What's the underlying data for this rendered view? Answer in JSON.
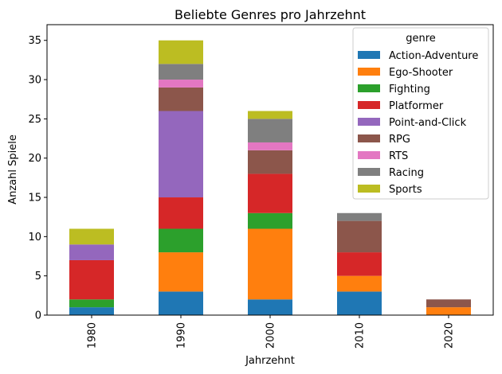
{
  "chart_data": {
    "type": "bar",
    "stacked": true,
    "title": "Beliebte Genres pro Jahrzehnt",
    "xlabel": "Jahrzehnt",
    "ylabel": "Anzahl Spiele",
    "categories": [
      "1980",
      "1990",
      "2000",
      "2010",
      "2020"
    ],
    "ylim": [
      0,
      37
    ],
    "yticks": [
      0,
      5,
      10,
      15,
      20,
      25,
      30,
      35
    ],
    "grid": false,
    "legend": {
      "title": "genre",
      "placement": "top-right"
    },
    "series": [
      {
        "name": "Action-Adventure",
        "color": "#1f77b4",
        "values": [
          1,
          3,
          2,
          3,
          0
        ]
      },
      {
        "name": "Ego-Shooter",
        "color": "#ff7f0e",
        "values": [
          0,
          5,
          9,
          2,
          1
        ]
      },
      {
        "name": "Fighting",
        "color": "#2ca02c",
        "values": [
          1,
          3,
          2,
          0,
          0
        ]
      },
      {
        "name": "Platformer",
        "color": "#d62728",
        "values": [
          5,
          4,
          5,
          3,
          0
        ]
      },
      {
        "name": "Point-and-Click",
        "color": "#9467bd",
        "values": [
          2,
          11,
          0,
          0,
          0
        ]
      },
      {
        "name": "RPG",
        "color": "#8c564b",
        "values": [
          0,
          3,
          3,
          4,
          1
        ]
      },
      {
        "name": "RTS",
        "color": "#e377c2",
        "values": [
          0,
          1,
          1,
          0,
          0
        ]
      },
      {
        "name": "Racing",
        "color": "#7f7f7f",
        "values": [
          0,
          2,
          3,
          1,
          0
        ]
      },
      {
        "name": "Sports",
        "color": "#bcbd22",
        "values": [
          2,
          3,
          1,
          0,
          0
        ]
      }
    ]
  }
}
